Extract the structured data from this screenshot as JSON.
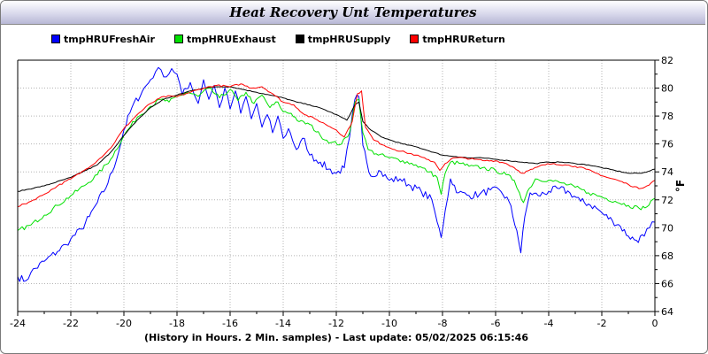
{
  "chart_data": {
    "type": "line",
    "title": "Heat Recovery Unt Temperatures",
    "xlabel": "(History in Hours. 2 Min. samples) - Last update: 05/02/2025 06:15:46",
    "ylabel": "°F",
    "xlim": [
      -24,
      0
    ],
    "ylim": [
      64,
      82
    ],
    "xticks": [
      -24,
      -22,
      -20,
      -18,
      -16,
      -14,
      -12,
      -10,
      -8,
      -6,
      -4,
      -2,
      0
    ],
    "yticks": [
      64,
      66,
      68,
      70,
      72,
      74,
      76,
      78,
      80,
      82
    ],
    "grid": true,
    "legend_position": "top-left",
    "series": [
      {
        "name": "tmpHRUFreshAir",
        "color": "#0000ff",
        "x": [
          -24,
          -23.7,
          -23.5,
          -23,
          -22.5,
          -22.2,
          -22,
          -21.6,
          -21.3,
          -21,
          -20.6,
          -20.2,
          -20,
          -19.7,
          -19.3,
          -19,
          -18.8,
          -18.6,
          -18.4,
          -18.2,
          -18,
          -17.8,
          -17.5,
          -17.2,
          -17,
          -16.8,
          -16.6,
          -16.4,
          -16.2,
          -16,
          -15.8,
          -15.6,
          -15.4,
          -15.2,
          -15,
          -14.8,
          -14.6,
          -14.4,
          -14.2,
          -14,
          -13.8,
          -13.5,
          -13.2,
          -13,
          -12.6,
          -12.3,
          -12,
          -11.7,
          -11.5,
          -11.3,
          -11.15,
          -11,
          -10.7,
          -10.4,
          -10,
          -9.6,
          -9.2,
          -8.8,
          -8.4,
          -8.2,
          -8.05,
          -7.9,
          -7.7,
          -7.4,
          -7,
          -6.6,
          -6.2,
          -5.8,
          -5.5,
          -5.2,
          -5.05,
          -4.9,
          -4.7,
          -4.4,
          -4,
          -3.6,
          -3.2,
          -2.8,
          -2.5,
          -2.2,
          -1.9,
          -1.6,
          -1.3,
          -1,
          -0.7,
          -0.4,
          -0.2,
          0
        ],
        "y": [
          66.5,
          66.2,
          66.8,
          67.6,
          68.3,
          68.8,
          69.2,
          69.9,
          70.8,
          71.8,
          73.2,
          75.4,
          77.0,
          78.6,
          79.8,
          80.6,
          81.2,
          81.3,
          80.8,
          81.4,
          81.0,
          79.5,
          80.4,
          78.9,
          80.6,
          79.2,
          80.2,
          78.6,
          80.0,
          78.5,
          79.8,
          78.2,
          79.4,
          77.8,
          78.9,
          77.2,
          78.1,
          76.8,
          78.0,
          76.4,
          77.1,
          75.6,
          76.4,
          75.2,
          74.7,
          74.2,
          73.9,
          74.3,
          76.5,
          79.2,
          79.4,
          75.9,
          73.7,
          74.1,
          73.4,
          73.5,
          73.0,
          72.6,
          72.0,
          70.4,
          69.3,
          71.2,
          73.5,
          72.5,
          72.3,
          72.4,
          72.7,
          72.6,
          71.9,
          69.8,
          68.2,
          70.8,
          72.5,
          72.3,
          72.6,
          72.8,
          72.5,
          71.9,
          71.7,
          71.4,
          70.9,
          70.5,
          70.1,
          69.4,
          69.1,
          69.4,
          70.0,
          70.4
        ]
      },
      {
        "name": "tmpHRUExhaust",
        "color": "#00e000",
        "x": [
          -24,
          -23.5,
          -23,
          -22.5,
          -22,
          -21.5,
          -21,
          -20.5,
          -20,
          -19.5,
          -19,
          -18.6,
          -18.3,
          -18,
          -17.6,
          -17.2,
          -16.8,
          -16.4,
          -16,
          -15.7,
          -15.4,
          -15.1,
          -14.8,
          -14.5,
          -14.2,
          -14,
          -13.7,
          -13.4,
          -13,
          -12.6,
          -12.2,
          -11.8,
          -11.5,
          -11.3,
          -11.15,
          -11,
          -10.8,
          -10.5,
          -10,
          -9.5,
          -9,
          -8.5,
          -8.2,
          -8.05,
          -7.9,
          -7.7,
          -7.3,
          -7,
          -6.5,
          -6,
          -5.6,
          -5.3,
          -5.1,
          -4.95,
          -4.8,
          -4.5,
          -4,
          -3.5,
          -3,
          -2.5,
          -2,
          -1.5,
          -1,
          -0.6,
          -0.3,
          0
        ],
        "y": [
          69.8,
          70.2,
          70.9,
          71.6,
          72.3,
          73.0,
          73.8,
          74.9,
          76.6,
          77.9,
          78.7,
          79.2,
          79.0,
          79.4,
          79.7,
          79.4,
          80.0,
          79.3,
          79.9,
          79.1,
          79.7,
          78.9,
          79.5,
          78.6,
          79.0,
          78.3,
          78.2,
          77.6,
          77.4,
          76.6,
          76.1,
          76.0,
          76.8,
          79.0,
          79.2,
          76.8,
          75.6,
          75.3,
          75.0,
          74.8,
          74.5,
          74.0,
          73.6,
          72.4,
          73.9,
          74.7,
          74.6,
          74.4,
          74.3,
          74.1,
          73.8,
          73.4,
          72.5,
          71.8,
          72.6,
          73.5,
          73.4,
          73.2,
          72.9,
          72.5,
          72.2,
          71.9,
          71.6,
          71.4,
          71.5,
          72.1
        ]
      },
      {
        "name": "tmpHRUSupply",
        "color": "#000000",
        "x": [
          -24,
          -23,
          -22,
          -21,
          -20.5,
          -20,
          -19.5,
          -19,
          -18.5,
          -18,
          -17.5,
          -17,
          -16.5,
          -16,
          -15.5,
          -15,
          -14.5,
          -14,
          -13.5,
          -13,
          -12.5,
          -12,
          -11.6,
          -11.3,
          -11.15,
          -11,
          -10.7,
          -10.3,
          -10,
          -9.5,
          -9,
          -8.5,
          -8,
          -7.5,
          -7,
          -6.5,
          -6,
          -5.5,
          -5,
          -4.5,
          -4,
          -3.5,
          -3,
          -2.5,
          -2,
          -1.5,
          -1,
          -0.5,
          0
        ],
        "y": [
          72.6,
          73.0,
          73.6,
          74.5,
          75.4,
          76.6,
          77.7,
          78.6,
          79.2,
          79.5,
          79.8,
          80.0,
          80.1,
          80.1,
          79.9,
          79.7,
          79.5,
          79.3,
          79.0,
          78.8,
          78.5,
          78.1,
          77.7,
          78.8,
          79.0,
          77.6,
          77.0,
          76.5,
          76.3,
          76.0,
          75.8,
          75.5,
          75.2,
          75.1,
          75.0,
          75.0,
          74.9,
          74.8,
          74.7,
          74.6,
          74.7,
          74.7,
          74.6,
          74.5,
          74.3,
          74.1,
          73.9,
          73.9,
          74.2
        ]
      },
      {
        "name": "tmpHRUReturn",
        "color": "#ff0000",
        "x": [
          -24,
          -23.5,
          -23,
          -22.5,
          -22,
          -21.5,
          -21,
          -20.5,
          -20,
          -19.5,
          -19,
          -18.5,
          -18,
          -17.5,
          -17,
          -16.5,
          -16,
          -15.6,
          -15.2,
          -14.8,
          -14.4,
          -14,
          -13.6,
          -13.2,
          -12.8,
          -12.4,
          -12,
          -11.7,
          -11.4,
          -11.2,
          -11.05,
          -10.9,
          -10.6,
          -10.2,
          -9.8,
          -9.4,
          -9,
          -8.6,
          -8.3,
          -8.1,
          -7.9,
          -7.6,
          -7.2,
          -6.8,
          -6.4,
          -6,
          -5.6,
          -5.3,
          -5,
          -4.6,
          -4.2,
          -3.8,
          -3.4,
          -3,
          -2.6,
          -2.2,
          -1.8,
          -1.4,
          -1,
          -0.6,
          -0.3,
          0
        ],
        "y": [
          71.5,
          71.9,
          72.4,
          73.0,
          73.5,
          74.1,
          74.8,
          75.7,
          77.1,
          78.1,
          78.9,
          79.4,
          79.4,
          79.7,
          80.0,
          80.2,
          80.1,
          80.3,
          80.0,
          80.1,
          79.6,
          79.0,
          78.8,
          78.1,
          77.8,
          77.4,
          77.0,
          76.5,
          77.6,
          79.6,
          79.8,
          77.2,
          76.3,
          75.9,
          75.6,
          75.4,
          75.2,
          74.9,
          74.7,
          74.1,
          74.6,
          75.0,
          75.0,
          74.9,
          74.8,
          74.8,
          74.6,
          74.3,
          73.9,
          74.2,
          74.5,
          74.6,
          74.5,
          74.4,
          74.2,
          73.9,
          73.6,
          73.4,
          73.1,
          72.8,
          73.0,
          73.4
        ]
      }
    ]
  }
}
